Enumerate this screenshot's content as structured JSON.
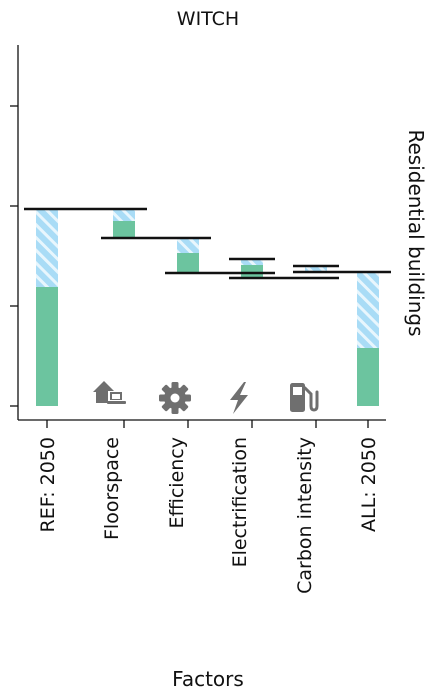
{
  "chart_data": {
    "type": "bar",
    "subtype": "waterfall-stacked",
    "title": "WITCH",
    "xlabel": "Factors",
    "facet_label": "Residential buildings",
    "categories": [
      "REF: 2050",
      "Floorspace",
      "Efficiency",
      "Electrification",
      "Carbon intensity",
      "ALL: 2050"
    ],
    "ylim": [
      0,
      3.2
    ],
    "yticks": [
      0,
      1,
      2,
      3
    ],
    "ytick_labels_shown": false,
    "grid": false,
    "legend": "none",
    "colors": {
      "direct": "#6cc49f",
      "indirect": "#a9dcf6",
      "indirect_hatch": "#e8f6fd",
      "total_line": "#111111",
      "icon": "#6f6f6f"
    },
    "levels": [
      {
        "category": "REF: 2050",
        "total": 1.97
      },
      {
        "category": "Floorspace",
        "from": 1.97,
        "to": 1.68
      },
      {
        "category": "Efficiency",
        "from": 1.68,
        "to": 1.33
      },
      {
        "category": "Electrification",
        "from": 1.47,
        "to": 1.28
      },
      {
        "category": "Carbon intensity",
        "from": 1.4,
        "to": 1.34
      },
      {
        "category": "ALL: 2050",
        "total": 1.34
      }
    ],
    "series": [
      {
        "key": "direct",
        "values": [
          1.19,
          0.13,
          0.19,
          0.16,
          0.03,
          0.58
        ]
      },
      {
        "key": "indirect",
        "values": [
          0.78,
          0.12,
          0.15,
          0.06,
          0.05,
          0.76
        ]
      }
    ],
    "icons": [
      "house-laptop-icon",
      "gear-icon",
      "lightning-icon",
      "fuel-pump-icon"
    ]
  }
}
